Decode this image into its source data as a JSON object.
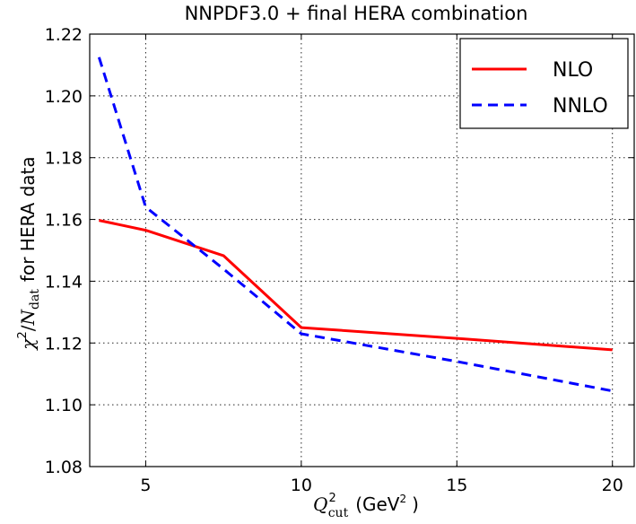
{
  "chart_data": {
    "type": "line",
    "title": "NNPDF3.0 + final HERA combination",
    "xlabel": {
      "symbol": "Q",
      "superscript": "2",
      "subscript": "cut",
      "unit": "(GeV",
      "unit_superscript": "2",
      "unit_close": ")"
    },
    "ylabel": {
      "chi": "χ",
      "chi_superscript": "2",
      "slash": "/",
      "N": "N",
      "N_subscript": "dat",
      "suffix": "for HERA data"
    },
    "xlim": [
      3.2,
      20.7
    ],
    "ylim": [
      1.08,
      1.22
    ],
    "xticks": [
      "5",
      "10",
      "15",
      "20"
    ],
    "xtick_values": [
      5,
      10,
      15,
      20
    ],
    "yticks": [
      "1.08",
      "1.10",
      "1.12",
      "1.14",
      "1.16",
      "1.18",
      "1.20",
      "1.22"
    ],
    "ytick_values": [
      1.08,
      1.1,
      1.12,
      1.14,
      1.16,
      1.18,
      1.2,
      1.22
    ],
    "grid": true,
    "legend_position": "top-right",
    "series": [
      {
        "name": "NLO",
        "color": "#ff0000",
        "style": "solid",
        "x": [
          3.5,
          5,
          7.5,
          10,
          15,
          20
        ],
        "y": [
          1.1597,
          1.1565,
          1.1483,
          1.125,
          1.1215,
          1.1178
        ]
      },
      {
        "name": "NNLO",
        "color": "#0000ff",
        "style": "dashed",
        "x": [
          3.5,
          5,
          7.5,
          10,
          15,
          20
        ],
        "y": [
          1.2125,
          1.164,
          1.144,
          1.123,
          1.114,
          1.1045
        ]
      }
    ]
  }
}
